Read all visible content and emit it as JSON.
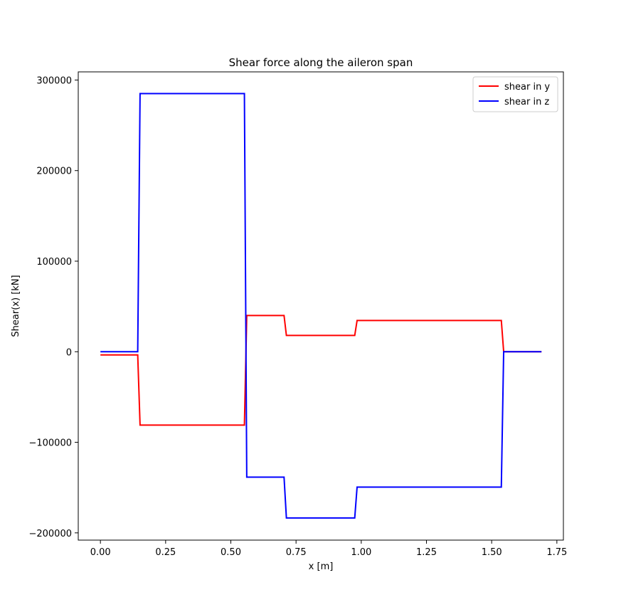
{
  "chart_data": {
    "type": "line",
    "title": "Shear force along the aileron span",
    "xlabel": "x [m]",
    "ylabel": "Shear(x) [kN]",
    "xlim": [
      -0.085,
      1.775
    ],
    "ylim": [
      -208000,
      309000
    ],
    "xticks": [
      0.0,
      0.25,
      0.5,
      0.75,
      1.0,
      1.25,
      1.5,
      1.75
    ],
    "xtick_labels": [
      "0.00",
      "0.25",
      "0.50",
      "0.75",
      "1.00",
      "1.25",
      "1.50",
      "1.75"
    ],
    "yticks": [
      -200000,
      -100000,
      0,
      100000,
      200000,
      300000
    ],
    "ytick_labels": [
      "−200000",
      "−100000",
      "0",
      "100000",
      "200000",
      "300000"
    ],
    "grid": false,
    "legend_position": "top-right",
    "series": [
      {
        "name": "shear in y",
        "color": "#ff0000",
        "x": [
          0.0,
          0.143,
          0.152,
          0.552,
          0.561,
          0.704,
          0.713,
          0.975,
          0.984,
          1.537,
          1.546,
          1.691
        ],
        "y": [
          -3500,
          -3500,
          -81000,
          -81000,
          40000,
          40000,
          18000,
          18000,
          34500,
          34500,
          0,
          0
        ]
      },
      {
        "name": "shear in z",
        "color": "#0000ff",
        "x": [
          0.0,
          0.143,
          0.152,
          0.552,
          0.561,
          0.704,
          0.713,
          0.975,
          0.984,
          1.537,
          1.546,
          1.691
        ],
        "y": [
          0,
          0,
          285000,
          285000,
          -138500,
          -138500,
          -183500,
          -183500,
          -149500,
          -149500,
          0,
          0
        ]
      }
    ]
  }
}
